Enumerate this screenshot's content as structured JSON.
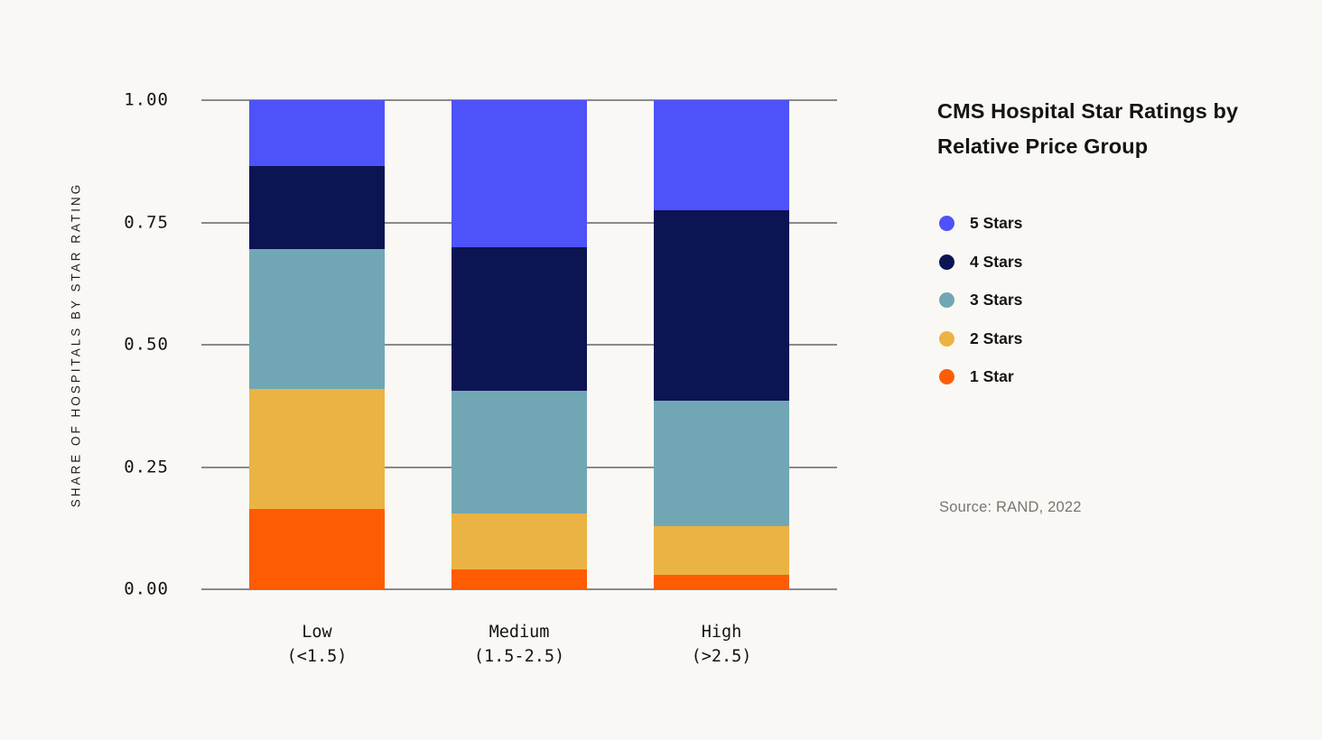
{
  "title": "CMS Hospital Star Ratings by Relative Price Group",
  "source_note": "Source: RAND, 2022",
  "colors": {
    "background": "#faf8f5",
    "gridline": "#8a8a8a",
    "text": "#141414",
    "source_text": "#787571",
    "five_stars": "#4e52f9",
    "four_stars": "#0c1453",
    "three_stars": "#71a7b4",
    "two_stars": "#ebb343",
    "one_star": "#fe5c03"
  },
  "chart_data": {
    "type": "bar",
    "stacked": true,
    "title": "CMS Hospital Star Ratings by Relative Price Group",
    "xlabel": "",
    "ylabel": "SHARE OF HOSPITALS BY STAR RATING",
    "ylim": [
      0,
      1
    ],
    "grid": true,
    "legend_position": "right",
    "legend_order": "top-is-last-series",
    "y_ticks": [
      {
        "label": "1.00",
        "value": 1.0
      },
      {
        "label": "0.75",
        "value": 0.75
      },
      {
        "label": "0.50",
        "value": 0.5
      },
      {
        "label": "0.25",
        "value": 0.25
      },
      {
        "label": "0.00",
        "value": 0.0
      }
    ],
    "categories": [
      {
        "label": "Low",
        "sublabel": "(<1.5)"
      },
      {
        "label": "Medium",
        "sublabel": "(1.5-2.5)"
      },
      {
        "label": "High",
        "sublabel": "(>2.5)"
      }
    ],
    "series": [
      {
        "name": "1 Star",
        "color": "#fe5c03",
        "values": [
          0.165,
          0.04,
          0.03
        ]
      },
      {
        "name": "2 Stars",
        "color": "#ebb343",
        "values": [
          0.245,
          0.115,
          0.1
        ]
      },
      {
        "name": "3 Stars",
        "color": "#71a7b4",
        "values": [
          0.285,
          0.25,
          0.255
        ]
      },
      {
        "name": "4 Stars",
        "color": "#0c1453",
        "values": [
          0.17,
          0.295,
          0.39
        ]
      },
      {
        "name": "5 Stars",
        "color": "#4e52f9",
        "values": [
          0.135,
          0.3,
          0.225
        ]
      }
    ]
  }
}
